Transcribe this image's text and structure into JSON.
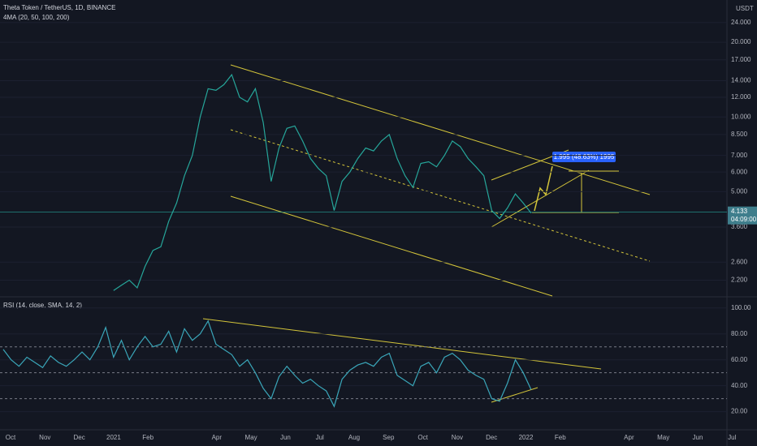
{
  "header": {
    "title": "Theta Token / TetherUS, 1D, BINANCE",
    "indicator": "4MA (20, 50, 100, 200)",
    "currency": "USDT"
  },
  "time_axis": {
    "xticks": [
      "Oct",
      "Nov",
      "Dec",
      "2021",
      "Feb",
      null,
      "Apr",
      "May",
      "Jun",
      "Jul",
      "Aug",
      "Sep",
      "Oct",
      "Nov",
      "Dec",
      "2022",
      "Feb",
      null,
      "Apr",
      "May",
      "Jun",
      "Jul"
    ]
  },
  "annotations": {
    "measure": "1.995 (48.63%) 1995",
    "countdown": "04:09:00"
  },
  "chart_data": [
    {
      "type": "line",
      "log_scale": true,
      "ylim": [
        1.9,
        29.6
      ],
      "yticks": [
        {
          "value": 2.2,
          "label": "2.200"
        },
        {
          "value": 2.6,
          "label": "2.600"
        },
        {
          "value": 3.6,
          "label": "3.600"
        },
        {
          "value": 5,
          "label": "5.000"
        },
        {
          "value": 6,
          "label": "6.000"
        },
        {
          "value": 7,
          "label": "7.000"
        },
        {
          "value": 8.5,
          "label": "8.500"
        },
        {
          "value": 10,
          "label": "10.000"
        },
        {
          "value": 12,
          "label": "12.000"
        },
        {
          "value": 14,
          "label": "14.000"
        },
        {
          "value": 17,
          "label": "17.000"
        },
        {
          "value": 20,
          "label": "20.000"
        },
        {
          "value": 24,
          "label": "24.000"
        }
      ],
      "last_price": {
        "value": 4.133,
        "label": "4.133"
      },
      "series": [
        {
          "color": "#26a69a",
          "values": [
            null,
            null,
            null,
            null,
            null,
            null,
            null,
            null,
            null,
            null,
            null,
            null,
            null,
            null,
            2.0,
            2.1,
            2.2,
            2.05,
            2.5,
            2.9,
            3.0,
            3.8,
            4.5,
            5.8,
            7.0,
            10.0,
            13.0,
            12.8,
            13.5,
            14.8,
            12.0,
            11.5,
            13.0,
            9.5,
            5.5,
            7.5,
            9.0,
            9.2,
            8.0,
            6.8,
            6.2,
            5.8,
            4.2,
            5.5,
            6.0,
            6.8,
            7.5,
            7.3,
            8.0,
            8.5,
            6.8,
            5.8,
            5.2,
            6.5,
            6.6,
            6.3,
            7.0,
            8.0,
            7.6,
            6.8,
            6.3,
            5.8,
            4.2,
            3.9,
            4.3,
            4.9,
            4.5,
            4.1
          ]
        }
      ]
    },
    {
      "type": "line",
      "title": "RSI (14, close, SMA, 14, 2)",
      "ylim": [
        6,
        108
      ],
      "yticks": [
        {
          "value": 20,
          "label": "20.00"
        },
        {
          "value": 40,
          "label": "40.00"
        },
        {
          "value": 60,
          "label": "60.00"
        },
        {
          "value": 80,
          "label": "80.00"
        },
        {
          "value": 100,
          "label": "100.00"
        }
      ],
      "levels": [
        70,
        50,
        30
      ],
      "series": [
        {
          "color": "#3aa6b9",
          "values": [
            68,
            60,
            55,
            62,
            58,
            54,
            63,
            58,
            55,
            60,
            66,
            60,
            70,
            85,
            62,
            75,
            60,
            70,
            78,
            70,
            72,
            82,
            66,
            84,
            75,
            80,
            90,
            72,
            68,
            64,
            55,
            60,
            50,
            38,
            30,
            47,
            55,
            48,
            42,
            45,
            40,
            36,
            24,
            45,
            52,
            56,
            58,
            55,
            62,
            65,
            48,
            44,
            40,
            55,
            58,
            50,
            62,
            65,
            60,
            52,
            48,
            45,
            30,
            28,
            42,
            60,
            50,
            37
          ]
        }
      ]
    }
  ]
}
